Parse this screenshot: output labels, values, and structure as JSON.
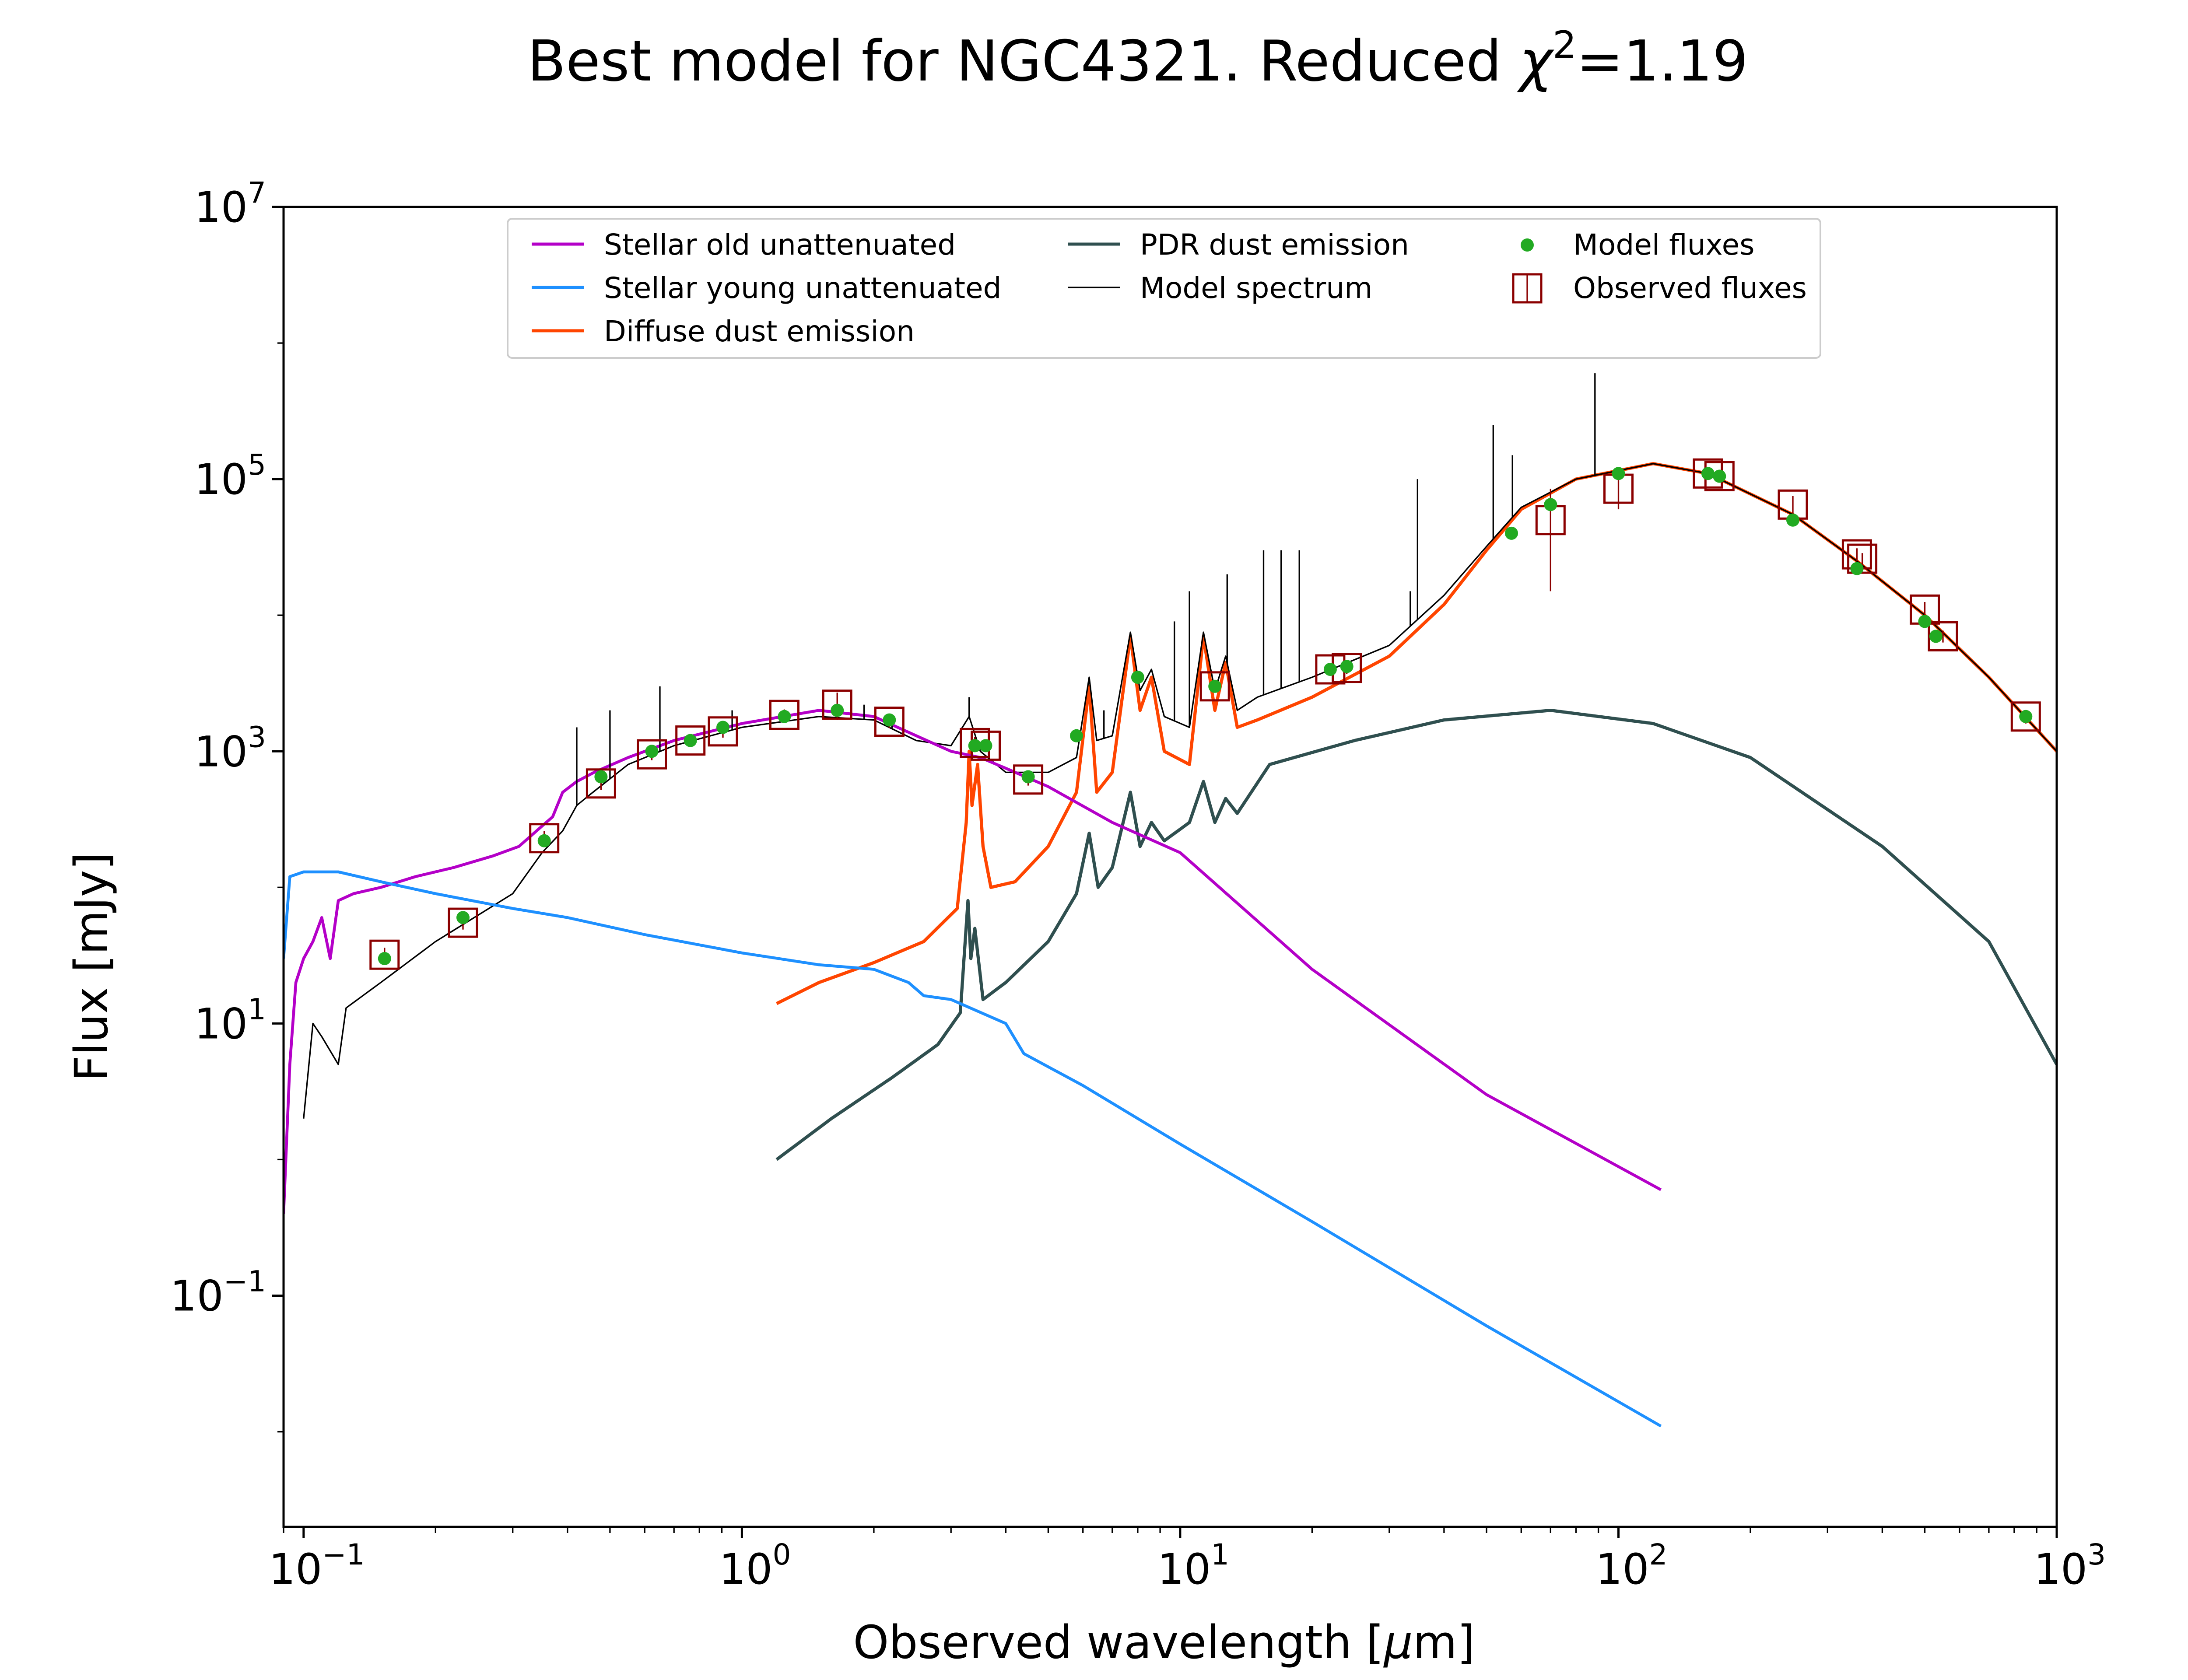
{
  "chart_data": {
    "type": "line",
    "title": "Best model for NGC4321. Reduced χ²=1.19",
    "title_main": "Best model for NGC4321. Reduced ",
    "title_chi": "χ",
    "title_sup": "2",
    "title_end": "=1.19",
    "xlabel": "Observed wavelength [μm]",
    "xlabel_main": "Observed wavelength [",
    "xlabel_mu": "μ",
    "xlabel_end": "m]",
    "ylabel": "Flux [mJy]",
    "xscale": "log",
    "yscale": "log",
    "xlim": [
      0.09,
      1000
    ],
    "ylim": [
      0.002,
      10000000
    ],
    "xticks": [
      {
        "base": "10",
        "exp": "−1",
        "value": 0.1
      },
      {
        "base": "10",
        "exp": "0",
        "value": 1
      },
      {
        "base": "10",
        "exp": "1",
        "value": 10
      },
      {
        "base": "10",
        "exp": "2",
        "value": 100
      },
      {
        "base": "10",
        "exp": "3",
        "value": 1000
      }
    ],
    "yticks": [
      {
        "base": "10",
        "exp": "−1",
        "value": 0.1
      },
      {
        "base": "10",
        "exp": "1",
        "value": 10
      },
      {
        "base": "10",
        "exp": "3",
        "value": 1000
      },
      {
        "base": "10",
        "exp": "5",
        "value": 100000
      },
      {
        "base": "10",
        "exp": "7",
        "value": 10000000
      }
    ],
    "legend_position": "top",
    "grid": false,
    "legend": [
      {
        "label": "Stellar old unattenuated",
        "kind": "line",
        "color": "#b400c8"
      },
      {
        "label": "Stellar young unattenuated",
        "kind": "line",
        "color": "#1e90ff"
      },
      {
        "label": "Diffuse dust emission",
        "kind": "line",
        "color": "#ff4500"
      },
      {
        "label": "PDR dust emission",
        "kind": "line",
        "color": "#2f4f4f"
      },
      {
        "label": "Model spectrum",
        "kind": "thinline",
        "color": "#000000"
      },
      {
        "label": "Model fluxes",
        "kind": "dot",
        "color": "#22aa22"
      },
      {
        "label": "Observed fluxes",
        "kind": "square",
        "color": "#8b0000"
      }
    ],
    "series": [
      {
        "name": "Stellar old unattenuated",
        "color": "#b400c8",
        "width": 2,
        "points": [
          [
            0.09,
            0.4
          ],
          [
            0.093,
            5
          ],
          [
            0.096,
            20
          ],
          [
            0.1,
            30
          ],
          [
            0.105,
            40
          ],
          [
            0.11,
            60
          ],
          [
            0.115,
            30
          ],
          [
            0.12,
            80
          ],
          [
            0.13,
            90
          ],
          [
            0.15,
            100
          ],
          [
            0.18,
            120
          ],
          [
            0.22,
            140
          ],
          [
            0.27,
            170
          ],
          [
            0.31,
            200
          ],
          [
            0.34,
            260
          ],
          [
            0.37,
            330
          ],
          [
            0.39,
            500
          ],
          [
            0.42,
            600
          ],
          [
            0.46,
            700
          ],
          [
            0.55,
            900
          ],
          [
            0.7,
            1200
          ],
          [
            1.0,
            1600
          ],
          [
            1.5,
            2000
          ],
          [
            2.0,
            1800
          ],
          [
            2.5,
            1300
          ],
          [
            3.0,
            1000
          ],
          [
            3.5,
            900
          ],
          [
            4.0,
            750
          ],
          [
            5.0,
            550
          ],
          [
            7.0,
            300
          ],
          [
            10.0,
            180
          ],
          [
            20.0,
            25
          ],
          [
            50.0,
            3
          ],
          [
            125.0,
            0.6
          ]
        ]
      },
      {
        "name": "Stellar young unattenuated",
        "color": "#1e90ff",
        "width": 2,
        "points": [
          [
            0.09,
            30
          ],
          [
            0.093,
            120
          ],
          [
            0.1,
            130
          ],
          [
            0.12,
            130
          ],
          [
            0.15,
            110
          ],
          [
            0.2,
            90
          ],
          [
            0.3,
            70
          ],
          [
            0.4,
            60
          ],
          [
            0.6,
            45
          ],
          [
            1.0,
            33
          ],
          [
            1.5,
            27
          ],
          [
            2.0,
            25
          ],
          [
            2.4,
            20
          ],
          [
            2.6,
            16
          ],
          [
            3.0,
            15
          ],
          [
            4.0,
            10
          ],
          [
            4.4,
            6
          ],
          [
            6.0,
            3.5
          ],
          [
            10.0,
            1.3
          ],
          [
            20.0,
            0.35
          ],
          [
            50.0,
            0.06
          ],
          [
            125.0,
            0.011
          ]
        ]
      },
      {
        "name": "Diffuse dust emission",
        "color": "#ff4500",
        "width": 2.2,
        "points": [
          [
            1.2,
            14
          ],
          [
            1.5,
            20
          ],
          [
            2.0,
            28
          ],
          [
            2.6,
            40
          ],
          [
            3.1,
            70
          ],
          [
            3.25,
            300
          ],
          [
            3.3,
            1000
          ],
          [
            3.35,
            400
          ],
          [
            3.45,
            800
          ],
          [
            3.55,
            200
          ],
          [
            3.7,
            100
          ],
          [
            4.2,
            110
          ],
          [
            5.0,
            200
          ],
          [
            5.8,
            500
          ],
          [
            6.2,
            3000
          ],
          [
            6.45,
            500
          ],
          [
            7.0,
            700
          ],
          [
            7.7,
            7000
          ],
          [
            8.1,
            2000
          ],
          [
            8.6,
            3500
          ],
          [
            9.2,
            1000
          ],
          [
            10.5,
            800
          ],
          [
            11.3,
            7000
          ],
          [
            12.0,
            2000
          ],
          [
            12.7,
            4500
          ],
          [
            13.5,
            1500
          ],
          [
            15.0,
            1700
          ],
          [
            20.0,
            2500
          ],
          [
            30.0,
            5000
          ],
          [
            40.0,
            12000
          ],
          [
            50.0,
            30000
          ],
          [
            60.0,
            60000
          ],
          [
            80.0,
            100000
          ],
          [
            120.0,
            130000
          ],
          [
            160.0,
            110000
          ],
          [
            250.0,
            55000
          ],
          [
            350.0,
            25000
          ],
          [
            500.0,
            10000
          ],
          [
            700.0,
            3500
          ],
          [
            1000.0,
            1000
          ]
        ]
      },
      {
        "name": "PDR dust emission",
        "color": "#2f4f4f",
        "width": 2.2,
        "points": [
          [
            1.2,
            1
          ],
          [
            1.6,
            2
          ],
          [
            2.2,
            4
          ],
          [
            2.8,
            7
          ],
          [
            3.15,
            12
          ],
          [
            3.28,
            80
          ],
          [
            3.33,
            30
          ],
          [
            3.4,
            50
          ],
          [
            3.55,
            15
          ],
          [
            4.0,
            20
          ],
          [
            5.0,
            40
          ],
          [
            5.8,
            90
          ],
          [
            6.2,
            250
          ],
          [
            6.5,
            100
          ],
          [
            7.0,
            140
          ],
          [
            7.7,
            500
          ],
          [
            8.1,
            200
          ],
          [
            8.6,
            300
          ],
          [
            9.2,
            220
          ],
          [
            10.5,
            300
          ],
          [
            11.3,
            600
          ],
          [
            12.0,
            300
          ],
          [
            12.7,
            450
          ],
          [
            13.5,
            350
          ],
          [
            16.0,
            800
          ],
          [
            25.0,
            1200
          ],
          [
            40.0,
            1700
          ],
          [
            70.0,
            2000
          ],
          [
            120.0,
            1600
          ],
          [
            200.0,
            900
          ],
          [
            400.0,
            200
          ],
          [
            700.0,
            40
          ],
          [
            1000.0,
            5
          ]
        ]
      },
      {
        "name": "Model spectrum",
        "color": "#000000",
        "width": 1,
        "points": [
          [
            0.1,
            2
          ],
          [
            0.105,
            10
          ],
          [
            0.11,
            8
          ],
          [
            0.12,
            5
          ],
          [
            0.125,
            13
          ],
          [
            0.15,
            20
          ],
          [
            0.2,
            40
          ],
          [
            0.3,
            90
          ],
          [
            0.35,
            180
          ],
          [
            0.39,
            260
          ],
          [
            0.42,
            400
          ],
          [
            0.45,
            480
          ],
          [
            0.55,
            800
          ],
          [
            0.7,
            1100
          ],
          [
            1.0,
            1500
          ],
          [
            1.5,
            1800
          ],
          [
            2.0,
            1700
          ],
          [
            2.5,
            1200
          ],
          [
            3.0,
            1100
          ],
          [
            3.3,
            1800
          ],
          [
            3.5,
            1000
          ],
          [
            4.0,
            700
          ],
          [
            5.0,
            700
          ],
          [
            5.8,
            900
          ],
          [
            6.2,
            3500
          ],
          [
            6.45,
            1200
          ],
          [
            7.0,
            1300
          ],
          [
            7.7,
            7500
          ],
          [
            8.1,
            2800
          ],
          [
            8.6,
            4000
          ],
          [
            9.2,
            1800
          ],
          [
            10.5,
            1500
          ],
          [
            11.3,
            7500
          ],
          [
            12.0,
            2800
          ],
          [
            12.7,
            5000
          ],
          [
            13.5,
            2000
          ],
          [
            15.0,
            2500
          ],
          [
            20.0,
            3500
          ],
          [
            30.0,
            6000
          ],
          [
            40.0,
            14000
          ],
          [
            50.0,
            32000
          ],
          [
            60.0,
            62000
          ],
          [
            80.0,
            100000
          ],
          [
            120.0,
            130000
          ],
          [
            160.0,
            110000
          ],
          [
            250.0,
            55000
          ],
          [
            350.0,
            25000
          ],
          [
            500.0,
            10000
          ],
          [
            700.0,
            3500
          ],
          [
            1000.0,
            1000
          ]
        ]
      }
    ],
    "emission_lines": [
      [
        0.42,
        1500
      ],
      [
        0.5,
        2000
      ],
      [
        0.65,
        3000
      ],
      [
        0.95,
        2000
      ],
      [
        1.65,
        2000
      ],
      [
        1.9,
        2200
      ],
      [
        2.2,
        1800
      ],
      [
        3.3,
        2500
      ],
      [
        6.7,
        2000
      ],
      [
        9.7,
        9000
      ],
      [
        10.5,
        15000
      ],
      [
        12.8,
        20000
      ],
      [
        15.5,
        30000
      ],
      [
        17.0,
        30000
      ],
      [
        18.7,
        30000
      ],
      [
        33.5,
        15000
      ],
      [
        34.8,
        100000
      ],
      [
        51.8,
        250000
      ],
      [
        57.3,
        150000
      ],
      [
        88.4,
        600000
      ]
    ],
    "model_fluxes": [
      [
        0.153,
        30
      ],
      [
        0.231,
        60
      ],
      [
        0.354,
        220
      ],
      [
        0.477,
        650
      ],
      [
        0.623,
        1000
      ],
      [
        0.763,
        1200
      ],
      [
        0.905,
        1500
      ],
      [
        1.25,
        1800
      ],
      [
        1.65,
        2000
      ],
      [
        2.17,
        1700
      ],
      [
        3.4,
        1100
      ],
      [
        3.6,
        1100
      ],
      [
        4.5,
        650
      ],
      [
        5.8,
        1300
      ],
      [
        8.0,
        3500
      ],
      [
        12.0,
        3000
      ],
      [
        22.0,
        4000
      ],
      [
        24.0,
        4200
      ],
      [
        57.0,
        40000
      ],
      [
        70.0,
        65000
      ],
      [
        100.0,
        110000
      ],
      [
        160.0,
        110000
      ],
      [
        170.0,
        105000
      ],
      [
        250.0,
        50000
      ],
      [
        350.0,
        22000
      ],
      [
        500.0,
        9000
      ],
      [
        530.0,
        7000
      ],
      [
        850.0,
        1800
      ]
    ],
    "observed_fluxes": [
      [
        0.153,
        32,
        4
      ],
      [
        0.231,
        55,
        6
      ],
      [
        0.354,
        230,
        30
      ],
      [
        0.477,
        580,
        60
      ],
      [
        0.623,
        950,
        90
      ],
      [
        0.763,
        1200,
        120
      ],
      [
        0.905,
        1400,
        140
      ],
      [
        1.25,
        1850,
        180
      ],
      [
        1.65,
        2200,
        500
      ],
      [
        2.17,
        1650,
        170
      ],
      [
        3.4,
        1150,
        120
      ],
      [
        3.6,
        1100,
        110
      ],
      [
        4.5,
        620,
        60
      ],
      [
        12.0,
        3000,
        300
      ],
      [
        22.0,
        4000,
        400
      ],
      [
        24.0,
        4100,
        400
      ],
      [
        70.0,
        50000,
        35000
      ],
      [
        100.0,
        85000,
        25000
      ],
      [
        160.0,
        110000,
        11000
      ],
      [
        170.0,
        105000,
        10000
      ],
      [
        250.0,
        65000,
        10000
      ],
      [
        350.0,
        28000,
        3000
      ],
      [
        360.0,
        26000,
        2600
      ],
      [
        500.0,
        11000,
        1500
      ],
      [
        550.0,
        7000,
        700
      ],
      [
        850.0,
        1800,
        200
      ]
    ]
  }
}
